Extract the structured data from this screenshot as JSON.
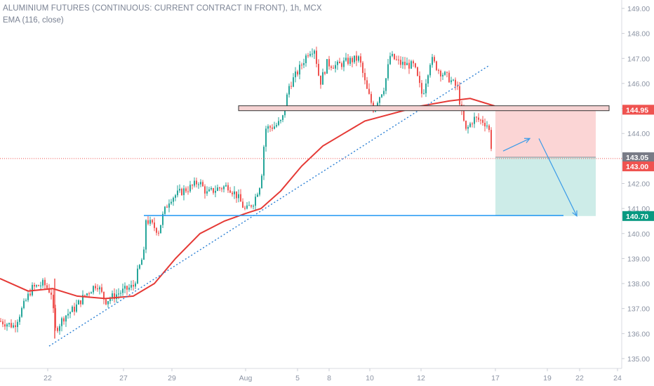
{
  "header": {
    "title": "ALUMINIUM FUTURES (CONTINUOUS: CURRENT CONTRACT IN FRONT), 1h, MCX",
    "indicator": "EMA (116, close)"
  },
  "colors": {
    "up": "#26a69a",
    "down": "#ef5350",
    "ema": "#e53935",
    "trendline": "#2a7fd4",
    "support": "#2196f3",
    "resistance_fill": "#f6d3d3",
    "resistance_border": "#333333",
    "stop_zone": "#fbd5d5",
    "target_zone": "#cdece8",
    "axis_text": "#8b93a3"
  },
  "chart_data": {
    "type": "candlestick",
    "title": "ALUMINIUM FUTURES (CONTINUOUS: CURRENT CONTRACT IN FRONT), 1h, MCX",
    "ylim": [
      134.7,
      149.2
    ],
    "y_ticks": [
      "149.00",
      "148.00",
      "147.00",
      "146.00",
      "145.00",
      "144.00",
      "143.00",
      "142.00",
      "141.00",
      "140.00",
      "139.00",
      "138.00",
      "137.00",
      "136.00",
      "135.00"
    ],
    "x_ticks": [
      "22",
      "27",
      "29",
      "Aug",
      "5",
      "8",
      "10",
      "12",
      "17",
      "19",
      "22",
      "24"
    ],
    "price_path": [
      [
        0,
        136.5
      ],
      [
        20,
        136.3
      ],
      [
        45,
        137.8
      ],
      [
        62,
        138.0
      ],
      [
        74,
        137.6
      ],
      [
        78,
        136.1
      ],
      [
        92,
        136.7
      ],
      [
        106,
        137.0
      ],
      [
        120,
        137.5
      ],
      [
        138,
        138.0
      ],
      [
        150,
        137.3
      ],
      [
        168,
        137.6
      ],
      [
        190,
        137.9
      ],
      [
        198,
        138.6
      ],
      [
        205,
        139.2
      ],
      [
        207,
        140.6
      ],
      [
        214,
        140.4
      ],
      [
        226,
        140.1
      ],
      [
        233,
        140.8
      ],
      [
        242,
        141.4
      ],
      [
        260,
        141.7
      ],
      [
        275,
        141.9
      ],
      [
        283,
        142.1
      ],
      [
        295,
        141.6
      ],
      [
        310,
        141.8
      ],
      [
        325,
        141.9
      ],
      [
        338,
        141.5
      ],
      [
        350,
        140.9
      ],
      [
        362,
        141.3
      ],
      [
        372,
        142.1
      ],
      [
        378,
        144.2
      ],
      [
        392,
        144.3
      ],
      [
        402,
        144.5
      ],
      [
        412,
        145.9
      ],
      [
        425,
        146.5
      ],
      [
        440,
        147.3
      ],
      [
        448,
        147.4
      ],
      [
        456,
        146.0
      ],
      [
        466,
        146.8
      ],
      [
        480,
        146.7
      ],
      [
        496,
        146.9
      ],
      [
        512,
        147.0
      ],
      [
        522,
        145.8
      ],
      [
        532,
        145.0
      ],
      [
        548,
        145.9
      ],
      [
        556,
        147.1
      ],
      [
        570,
        146.8
      ],
      [
        590,
        146.7
      ],
      [
        602,
        145.5
      ],
      [
        614,
        147.0
      ],
      [
        626,
        146.5
      ],
      [
        640,
        146.2
      ],
      [
        652,
        145.8
      ],
      [
        658,
        144.8
      ],
      [
        664,
        144.1
      ],
      [
        675,
        144.6
      ],
      [
        688,
        144.5
      ],
      [
        696,
        144.3
      ],
      [
        702,
        143.1
      ]
    ],
    "ema_116": [
      [
        0,
        138.2
      ],
      [
        40,
        137.7
      ],
      [
        75,
        137.8
      ],
      [
        110,
        137.5
      ],
      [
        150,
        137.4
      ],
      [
        190,
        137.5
      ],
      [
        220,
        138.0
      ],
      [
        250,
        139.0
      ],
      [
        285,
        140.0
      ],
      [
        320,
        140.5
      ],
      [
        350,
        140.8
      ],
      [
        372,
        141.0
      ],
      [
        400,
        141.7
      ],
      [
        430,
        142.7
      ],
      [
        460,
        143.5
      ],
      [
        490,
        144.0
      ],
      [
        520,
        144.5
      ],
      [
        560,
        144.8
      ],
      [
        600,
        145.1
      ],
      [
        640,
        145.3
      ],
      [
        670,
        145.4
      ],
      [
        705,
        145.1
      ]
    ],
    "trendline": {
      "from": [
        70,
        135.5
      ],
      "to": [
        696,
        146.7
      ]
    },
    "support_level": {
      "from": [
        205,
        140.72
      ],
      "to": [
        803,
        140.72
      ],
      "price": 140.7
    },
    "resistance_zone": {
      "x_range": [
        340,
        868
      ],
      "top": 145.08,
      "bottom": 144.98,
      "price": 144.95
    },
    "position": {
      "x_range": [
        706,
        849
      ],
      "entry": 143.05,
      "stop": 144.95,
      "target": 140.7
    },
    "forecast_arrows": [
      {
        "from": [
          717,
          143.3
        ],
        "to": [
          755,
          143.8
        ]
      },
      {
        "from": [
          768,
          143.8
        ],
        "to": [
          822,
          140.7
        ]
      }
    ],
    "current_price_line": 143.0,
    "price_labels": [
      {
        "text": "144.95",
        "value": 144.95,
        "color": "#ef5350"
      },
      {
        "text": "143.05",
        "value": 143.05,
        "color": "#787b86"
      },
      {
        "text": "143.00",
        "value": 143.0,
        "color": "#ef5350"
      },
      {
        "text": "140.70",
        "value": 140.7,
        "color": "#089981"
      }
    ]
  }
}
